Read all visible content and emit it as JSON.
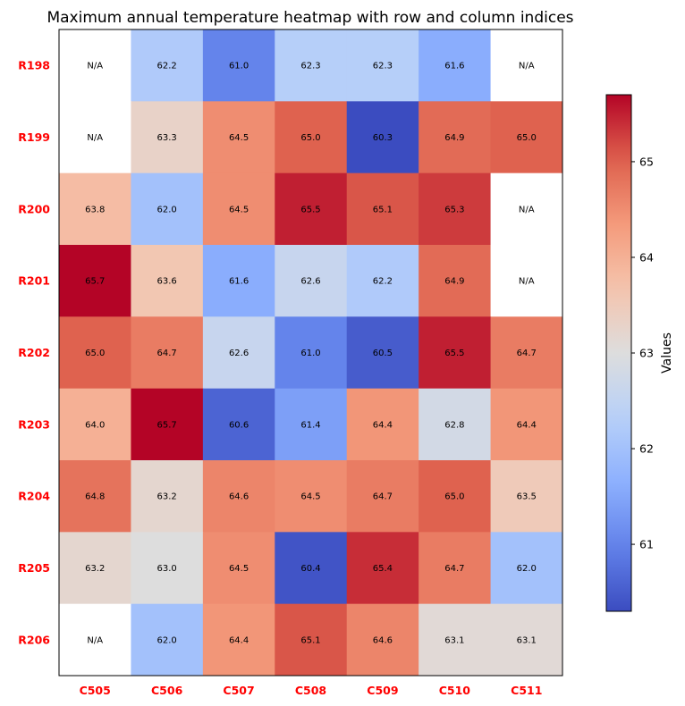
{
  "chart_data": {
    "type": "heatmap",
    "title": "Maximum annual temperature heatmap with row and column indices",
    "rows": [
      "R198",
      "R199",
      "R200",
      "R201",
      "R202",
      "R203",
      "R204",
      "R205",
      "R206"
    ],
    "columns": [
      "C505",
      "C506",
      "C507",
      "C508",
      "C509",
      "C510",
      "C511"
    ],
    "values": [
      [
        null,
        62.2,
        61.0,
        62.3,
        62.3,
        61.6,
        null
      ],
      [
        null,
        63.3,
        64.5,
        65.0,
        60.3,
        64.9,
        65.0
      ],
      [
        63.8,
        62.0,
        64.5,
        65.5,
        65.1,
        65.3,
        null
      ],
      [
        65.7,
        63.6,
        61.6,
        62.6,
        62.2,
        64.9,
        null
      ],
      [
        65.0,
        64.7,
        62.6,
        61.0,
        60.5,
        65.5,
        64.7
      ],
      [
        64.0,
        65.7,
        60.6,
        61.4,
        64.4,
        62.8,
        64.4
      ],
      [
        64.8,
        63.2,
        64.6,
        64.5,
        64.7,
        65.0,
        63.5
      ],
      [
        63.2,
        63.0,
        64.5,
        60.4,
        65.4,
        64.7,
        62.0
      ],
      [
        null,
        62.0,
        64.4,
        65.1,
        64.6,
        63.1,
        63.1
      ]
    ],
    "missing_label": "N/A",
    "colormap": "coolwarm",
    "vmin": 60.3,
    "vmax": 65.7,
    "colorbar": {
      "label": "Values",
      "ticks": [
        61,
        62,
        63,
        64,
        65
      ]
    },
    "tick_label_color": "#ff0000"
  }
}
